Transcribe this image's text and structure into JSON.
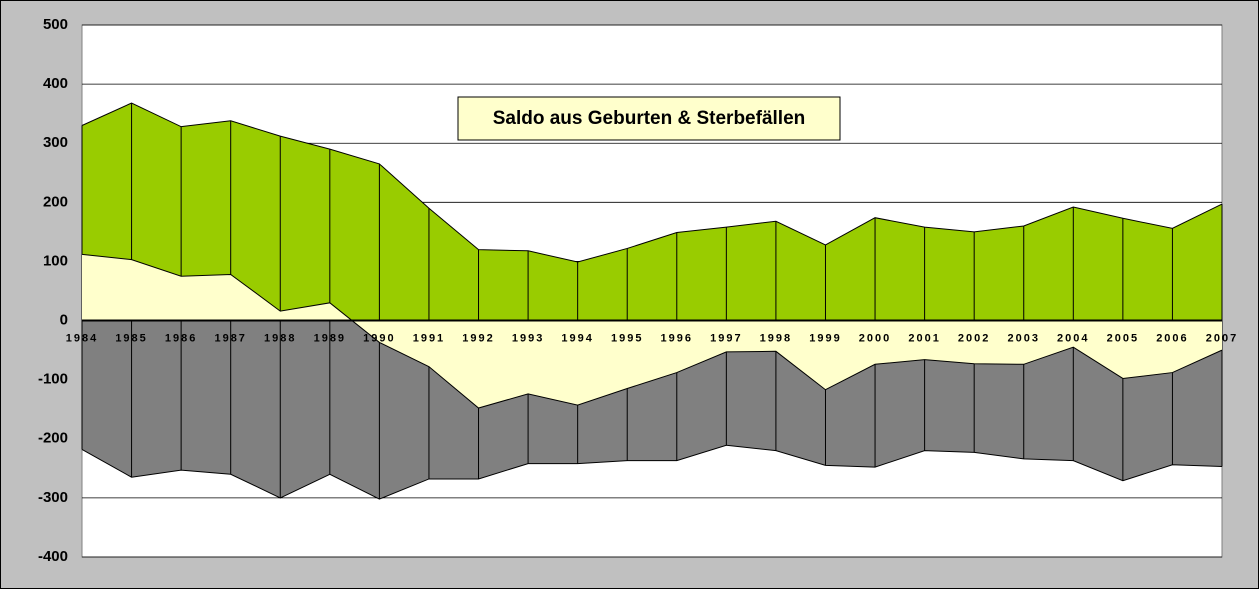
{
  "chart_data": {
    "type": "area",
    "title": "Saldo aus Geburten & Sterbefällen",
    "categories": [
      "1984",
      "1985",
      "1986",
      "1987",
      "1988",
      "1989",
      "1990",
      "1991",
      "1992",
      "1993",
      "1994",
      "1995",
      "1996",
      "1997",
      "1998",
      "1999",
      "2000",
      "2001",
      "2002",
      "2003",
      "2004",
      "2005",
      "2006",
      "2007"
    ],
    "series": [
      {
        "color": "#99cc00",
        "values": [
          330,
          368,
          328,
          338,
          312,
          290,
          265,
          190,
          120,
          118,
          99,
          122,
          149,
          158,
          168,
          128,
          174,
          158,
          150,
          160,
          192,
          173,
          156,
          197
        ]
      },
      {
        "color": "#808080",
        "values": [
          -218,
          -265,
          -253,
          -260,
          -300,
          -260,
          -302,
          -268,
          -268,
          -242,
          -242,
          -237,
          -237,
          -211,
          -220,
          -245,
          -248,
          -220,
          -223,
          -234,
          -237,
          -271,
          -244,
          -247
        ]
      },
      {
        "color": "#ffffcc",
        "values": [
          112,
          103,
          75,
          78,
          16,
          30,
          -37,
          -78,
          -148,
          -124,
          -143,
          -115,
          -88,
          -53,
          -52,
          -117,
          -74,
          -66,
          -73,
          -74,
          -45,
          -98,
          -88,
          -50
        ]
      }
    ],
    "ylim": [
      -400,
      500
    ],
    "yticks": [
      -400,
      -300,
      -200,
      -100,
      0,
      100,
      200,
      300,
      400,
      500
    ],
    "grid": true
  }
}
